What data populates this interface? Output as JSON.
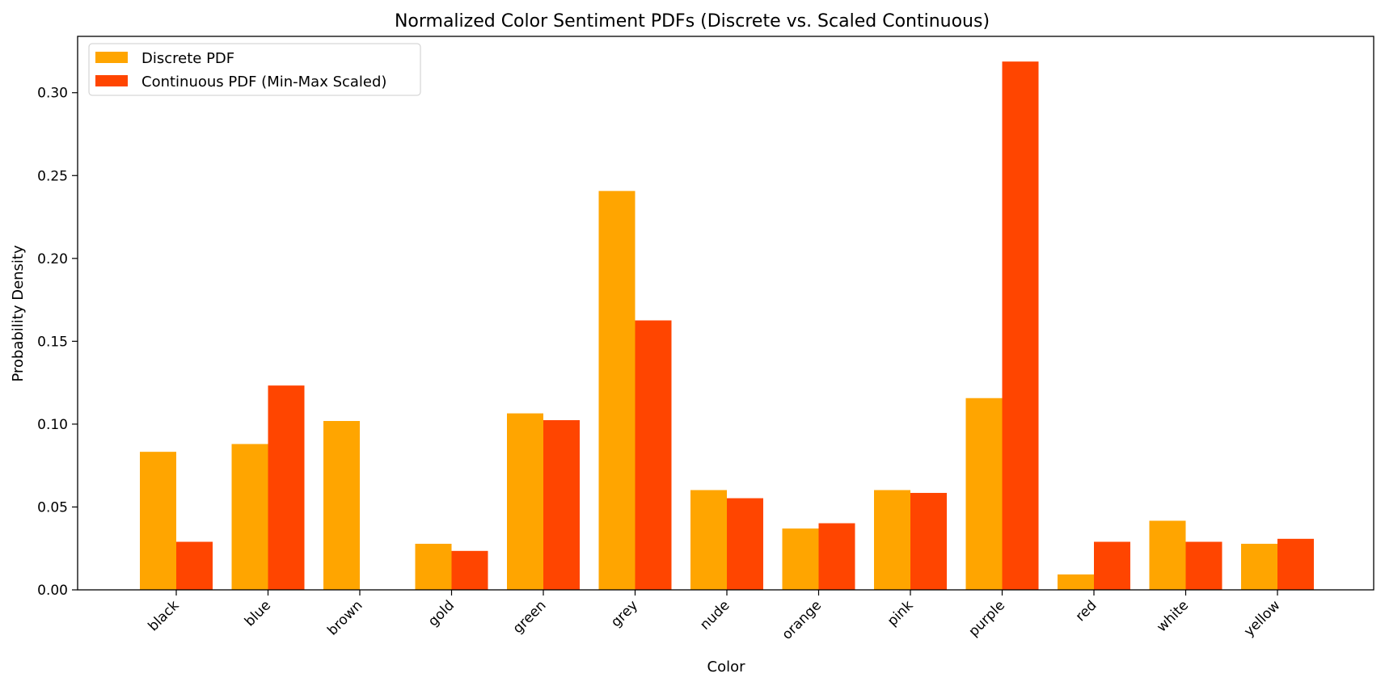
{
  "chart_data": {
    "type": "bar",
    "title": "Normalized Color Sentiment PDFs (Discrete vs. Scaled Continuous)",
    "xlabel": "Color",
    "ylabel": "Probability Density",
    "categories": [
      "black",
      "blue",
      "brown",
      "gold",
      "green",
      "grey",
      "nude",
      "orange",
      "pink",
      "purple",
      "red",
      "white",
      "yellow"
    ],
    "series": [
      {
        "name": "Discrete PDF",
        "color": "#ffa500",
        "values": [
          0.0833,
          0.088,
          0.1019,
          0.0278,
          0.1065,
          0.2407,
          0.0602,
          0.037,
          0.0602,
          0.1157,
          0.0093,
          0.0417,
          0.0278
        ]
      },
      {
        "name": "Continuous PDF (Min-Max Scaled)",
        "color": "#ff4500",
        "values": [
          0.029,
          0.1233,
          0.0,
          0.0235,
          0.1024,
          0.1626,
          0.0553,
          0.0402,
          0.0585,
          0.3188,
          0.029,
          0.029,
          0.0308
        ]
      }
    ],
    "ylim": [
      0,
      0.334
    ],
    "yticks": [
      0.0,
      0.05,
      0.1,
      0.15,
      0.2,
      0.25,
      0.3
    ],
    "ytick_labels": [
      "0.00",
      "0.05",
      "0.10",
      "0.15",
      "0.20",
      "0.25",
      "0.30"
    ],
    "grid": false,
    "legend_position": "upper-left"
  }
}
